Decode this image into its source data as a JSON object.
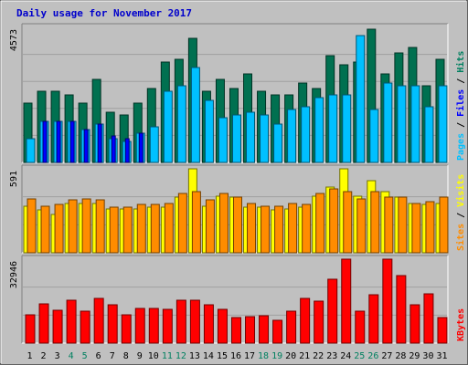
{
  "colors": {
    "background": "#c0c0c0",
    "panel": "#c0c0c0",
    "title": "#0000cc",
    "weekday": "#000000",
    "weekend": "#008060",
    "hits": "#007050",
    "files": "#00c0ff",
    "pages": "#0000ff",
    "visits": "#ffff00",
    "sites": "#ff8c00",
    "kbytes": "#ff0000"
  },
  "chart_data": [
    {
      "type": "bar",
      "title": "Daily usage for November 2017",
      "ylabel_parts": [
        {
          "text": "Pages",
          "color": "#00c0ff"
        },
        {
          "text": " / ",
          "color": "#000000"
        },
        {
          "text": "Files",
          "color": "#0000ff"
        },
        {
          "text": " / ",
          "color": "#000000"
        },
        {
          "text": "Hits",
          "color": "#008060"
        }
      ],
      "ymax_label": "4573",
      "ylim": [
        0,
        4573
      ],
      "categories": [
        "1",
        "2",
        "3",
        "4",
        "5",
        "6",
        "7",
        "8",
        "9",
        "10",
        "11",
        "12",
        "13",
        "14",
        "15",
        "16",
        "17",
        "18",
        "19",
        "20",
        "21",
        "22",
        "23",
        "24",
        "25",
        "26",
        "27",
        "28",
        "29",
        "30",
        "31"
      ],
      "weekend_days": [
        "4",
        "5",
        "11",
        "12",
        "18",
        "19",
        "25",
        "26"
      ],
      "series": [
        {
          "key": "hits",
          "color": "#007050",
          "values": [
            2000,
            2400,
            2400,
            2300,
            2000,
            2800,
            1700,
            1600,
            2000,
            2500,
            3400,
            3500,
            4200,
            2400,
            2800,
            2500,
            3000,
            2400,
            2300,
            2300,
            2700,
            2500,
            3600,
            3300,
            3400,
            4500,
            3000,
            3700,
            3900,
            2600,
            3500
          ]
        },
        {
          "key": "files",
          "color": "#00c0ff",
          "values": [
            800,
            1400,
            1400,
            1400,
            1100,
            1300,
            800,
            700,
            1000,
            1200,
            2400,
            2600,
            3200,
            2100,
            1500,
            1600,
            1700,
            1600,
            1300,
            1800,
            1900,
            2200,
            2300,
            2300,
            4300,
            1800,
            2700,
            2600,
            2600,
            1900,
            2600
          ]
        },
        {
          "key": "pages",
          "color": "#0000ff",
          "values": [
            0,
            1400,
            1400,
            1400,
            1100,
            1300,
            900,
            800,
            1000,
            0,
            0,
            0,
            0,
            0,
            0,
            0,
            0,
            0,
            0,
            0,
            0,
            0,
            0,
            0,
            0,
            0,
            0,
            0,
            0,
            0,
            0
          ]
        }
      ]
    },
    {
      "type": "bar",
      "ylabel_parts": [
        {
          "text": "Sites",
          "color": "#ff8c00"
        },
        {
          "text": " / ",
          "color": "#000000"
        },
        {
          "text": "Visits",
          "color": "#ffff00"
        }
      ],
      "ymax_label": "591",
      "ylim": [
        0,
        591
      ],
      "categories": [
        "1",
        "2",
        "3",
        "4",
        "5",
        "6",
        "7",
        "8",
        "9",
        "10",
        "11",
        "12",
        "13",
        "14",
        "15",
        "16",
        "17",
        "18",
        "19",
        "20",
        "21",
        "22",
        "23",
        "24",
        "25",
        "26",
        "27",
        "28",
        "29",
        "30",
        "31"
      ],
      "series": [
        {
          "key": "visits",
          "color": "#ffff00",
          "values": [
            330,
            300,
            270,
            350,
            350,
            350,
            310,
            310,
            310,
            320,
            320,
            390,
            590,
            330,
            400,
            390,
            320,
            320,
            300,
            310,
            320,
            400,
            460,
            590,
            400,
            510,
            430,
            390,
            350,
            340,
            350
          ]
        },
        {
          "key": "sites",
          "color": "#ff8c00",
          "values": [
            380,
            330,
            340,
            370,
            380,
            370,
            320,
            320,
            340,
            340,
            350,
            420,
            430,
            370,
            420,
            390,
            350,
            330,
            330,
            350,
            340,
            420,
            450,
            430,
            380,
            430,
            390,
            390,
            350,
            360,
            390
          ]
        }
      ]
    },
    {
      "type": "bar",
      "ylabel_parts": [
        {
          "text": "KBytes",
          "color": "#ff0000"
        }
      ],
      "ymax_label": "32946",
      "ylim": [
        0,
        32946
      ],
      "categories": [
        "1",
        "2",
        "3",
        "4",
        "5",
        "6",
        "7",
        "8",
        "9",
        "10",
        "11",
        "12",
        "13",
        "14",
        "15",
        "16",
        "17",
        "18",
        "19",
        "20",
        "21",
        "22",
        "23",
        "24",
        "25",
        "26",
        "27",
        "28",
        "29",
        "30",
        "31"
      ],
      "series": [
        {
          "key": "kbytes",
          "color": "#ff0000",
          "values": [
            11000,
            15500,
            13000,
            16700,
            12400,
            17600,
            15000,
            11100,
            13600,
            13500,
            13300,
            16800,
            17000,
            14900,
            13200,
            10200,
            10400,
            10700,
            9000,
            12700,
            17400,
            16600,
            25000,
            32946,
            12400,
            19000,
            32946,
            26500,
            15200,
            19500,
            10000
          ]
        }
      ]
    }
  ]
}
